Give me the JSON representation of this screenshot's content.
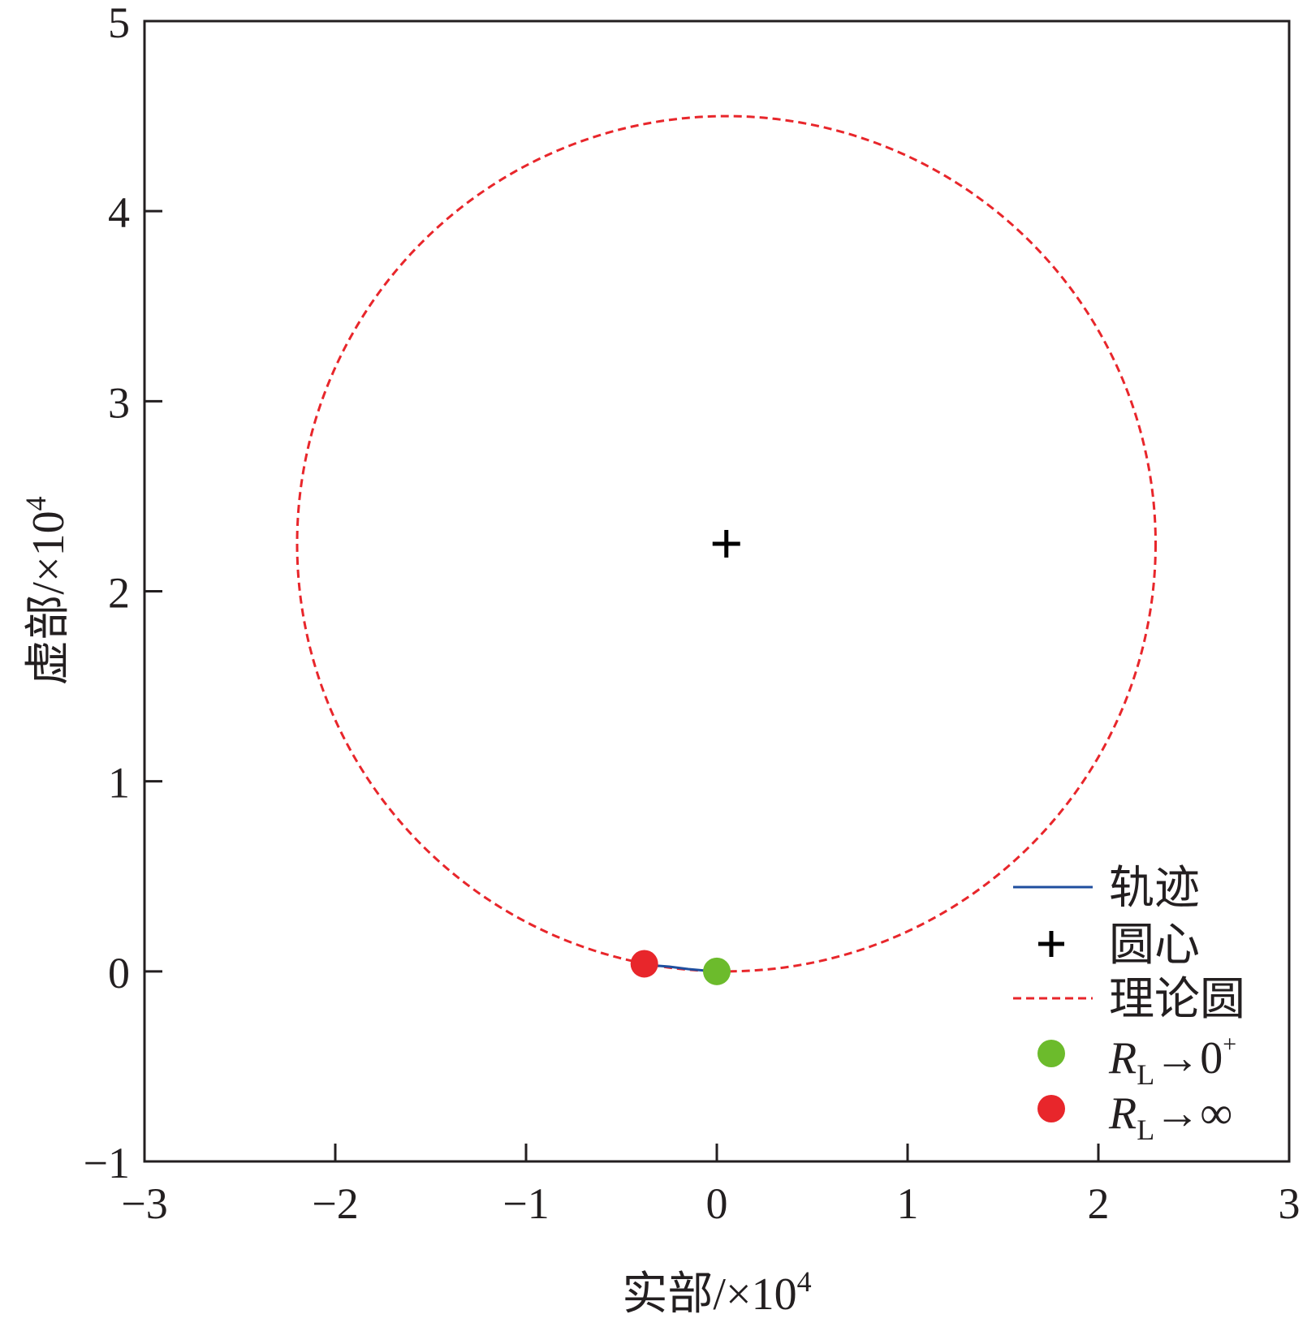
{
  "chart_data": {
    "type": "scatter",
    "xlabel": "实部/×10",
    "xlabel_sup": "4",
    "ylabel": "虚部/×10",
    "ylabel_sup": "4",
    "xlim": [
      -3,
      3
    ],
    "ylim": [
      -1,
      5
    ],
    "xticks": [
      -3,
      -2,
      -1,
      0,
      1,
      2,
      3
    ],
    "yticks": [
      -1,
      0,
      1,
      2,
      3,
      4,
      5
    ],
    "xtick_labels": [
      "−3",
      "−2",
      "−1",
      "0",
      "1",
      "2",
      "3"
    ],
    "ytick_labels": [
      "−1",
      "0",
      "1",
      "2",
      "3",
      "4",
      "5"
    ],
    "grid": false,
    "legend_position": "bottom-right",
    "series": [
      {
        "name": "轨迹",
        "style": "line",
        "color": "#1f4e9e",
        "points": [
          [
            -0.38,
            0.035
          ],
          [
            -0.25,
            0.025
          ],
          [
            -0.15,
            0.012
          ],
          [
            -0.05,
            0.003
          ],
          [
            0,
            0
          ]
        ]
      },
      {
        "name": "圆心",
        "style": "plus-marker",
        "color": "#000000",
        "points": [
          [
            0.05,
            2.25
          ]
        ]
      },
      {
        "name": "理论圆",
        "style": "dashed-circle",
        "color": "#e8262b",
        "center": [
          0.05,
          2.25
        ],
        "radius": 2.25
      },
      {
        "name": "R",
        "name_sub": "L",
        "name_suffix": "→0",
        "name_sup": "+",
        "style": "dot-marker",
        "color": "#6cbb2c",
        "points": [
          [
            0,
            0
          ]
        ]
      },
      {
        "name": "R",
        "name_sub": "L",
        "name_suffix": "→∞",
        "style": "dot-marker",
        "color": "#e8262b",
        "points": [
          [
            -0.38,
            0.04
          ]
        ]
      }
    ]
  }
}
